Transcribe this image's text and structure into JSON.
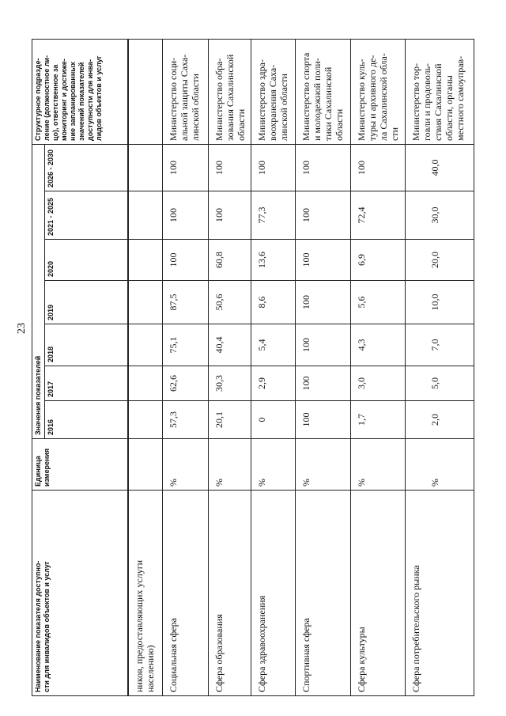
{
  "page_number": "23",
  "header": {
    "name": "Наименование показателя доступно-\nсти для инвалидов объектов и услуг",
    "unit": "Единица\nизмерения",
    "values_group": "Значения показателей",
    "years": [
      "2016",
      "2017",
      "2018",
      "2019",
      "2020",
      "2021 - 2025",
      "2026 - 2030"
    ],
    "responsible": "Структурное подразде-\nление (должностное ли-\nцо), ответственное за\nмониторинг и достиже-\nние запланированных\nзначений показателей\nдоступности для инва-\nлидов объектов и услуг"
  },
  "continuation": "ников, предоставляющих услуги\nнаселению)",
  "rows": [
    {
      "name": "Социальная сфера",
      "unit": "%",
      "values": [
        "57,3",
        "62,6",
        "75,1",
        "87,5",
        "100",
        "100",
        "100"
      ],
      "responsible": "Министерство соци-\nальной защиты Саха-\nлинской области"
    },
    {
      "name": "Сфера образования",
      "unit": "%",
      "values": [
        "20,1",
        "30,3",
        "40,4",
        "50,6",
        "60,8",
        "100",
        "100"
      ],
      "responsible": "Министерство обра-\nзования Сахалинской\nобласти"
    },
    {
      "name": "Сфера здравоохранения",
      "unit": "%",
      "values": [
        "0",
        "2,9",
        "5,4",
        "8,6",
        "13,6",
        "77,3",
        "100"
      ],
      "responsible": "Министерство здра-\nвоохранения Саха-\nлинской области"
    },
    {
      "name": "Спортивная сфера",
      "unit": "%",
      "values": [
        "100",
        "100",
        "100",
        "100",
        "100",
        "100",
        "100"
      ],
      "responsible": "Министерство спорта\nи молодежной поли-\nтики Сахалинской\nобласти"
    },
    {
      "name": "Сфера культуры",
      "unit": "%",
      "values": [
        "1,7",
        "3,0",
        "4,3",
        "5,6",
        "6,9",
        "72,4",
        "100"
      ],
      "responsible": "Министерство куль-\nтуры и архивного де-\nла Сахалинской обла-\nсти"
    },
    {
      "name": "Сфера потребительского рынка",
      "unit": "%",
      "values": [
        "2,0",
        "5,0",
        "7,0",
        "10,0",
        "20,0",
        "30,0",
        "40,0"
      ],
      "responsible": "Министерство тор-\nговли и продоволь-\nствия Сахалинской\nобласти, органы\nместного самоуправ-"
    }
  ]
}
